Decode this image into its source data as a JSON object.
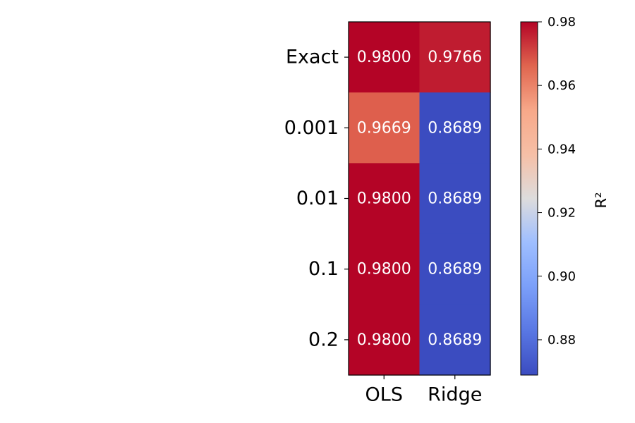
{
  "chart_data": {
    "type": "heatmap",
    "x_categories": [
      "OLS",
      "Ridge"
    ],
    "y_categories": [
      "Exact",
      "0.001",
      "0.01",
      "0.1",
      "0.2"
    ],
    "values": [
      [
        0.98,
        0.9766
      ],
      [
        0.9669,
        0.8689
      ],
      [
        0.98,
        0.8689
      ],
      [
        0.98,
        0.8689
      ],
      [
        0.98,
        0.8689
      ]
    ],
    "cell_labels": [
      [
        "0.9800",
        "0.9766"
      ],
      [
        "0.9669",
        "0.8689"
      ],
      [
        "0.9800",
        "0.8689"
      ],
      [
        "0.9800",
        "0.8689"
      ],
      [
        "0.9800",
        "0.8689"
      ]
    ],
    "colormap": "coolwarm",
    "vmin": 0.8689,
    "vmax": 0.98,
    "colorbar": {
      "label": "R²",
      "ticks": [
        0.88,
        0.9,
        0.92,
        0.94,
        0.96,
        0.98
      ],
      "tick_labels": [
        "0.88",
        "0.90",
        "0.92",
        "0.94",
        "0.96",
        "0.98"
      ]
    },
    "grid": false,
    "title": "",
    "xlabel": "",
    "ylabel": ""
  }
}
